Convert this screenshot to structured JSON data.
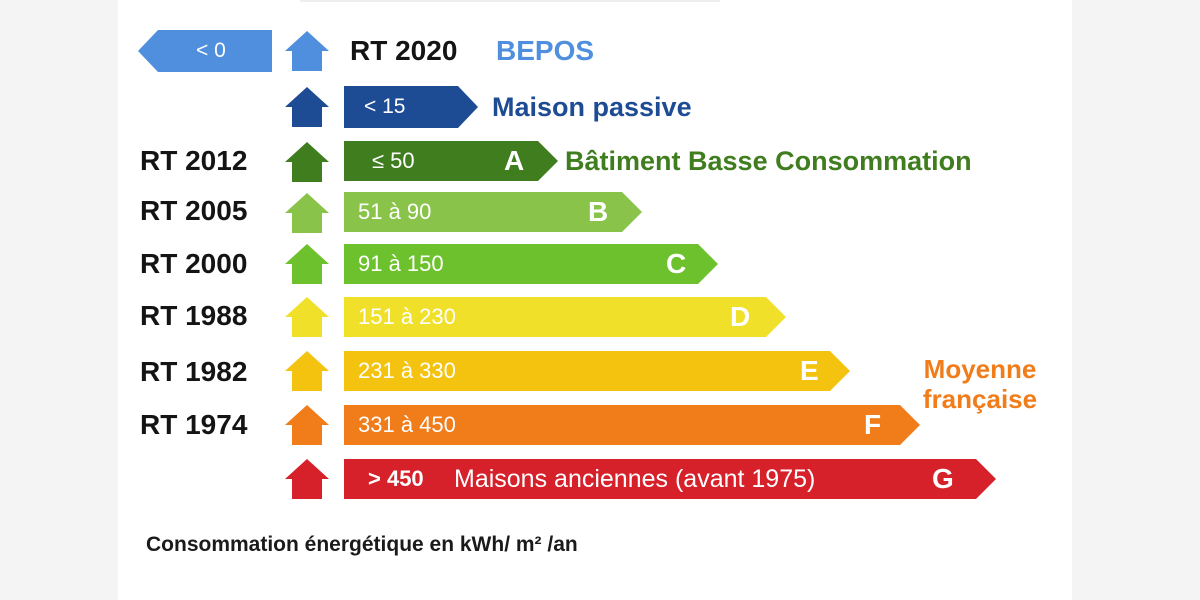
{
  "colors": {
    "bepos": "#4f8fde",
    "passive": "#1e4c94",
    "A": "#3f7d1f",
    "B": "#8ac34a",
    "C": "#6cc12c",
    "D": "#f1e02a",
    "E": "#f4c30f",
    "F": "#f07c1a",
    "G": "#d6202a"
  },
  "bepos": {
    "value": "< 0",
    "regulation": "RT 2020",
    "label": "BEPOS"
  },
  "passive": {
    "value": "< 15",
    "label": "Maison passive"
  },
  "classes": [
    {
      "regulation": "RT 2012",
      "range": "≤ 50",
      "letter": "A",
      "note": "Bâtiment Basse Consommation"
    },
    {
      "regulation": "RT 2005",
      "range": "51 à 90",
      "letter": "B"
    },
    {
      "regulation": "RT 2000",
      "range": "91 à 150",
      "letter": "C"
    },
    {
      "regulation": "RT 1988",
      "range": "151 à 230",
      "letter": "D"
    },
    {
      "regulation": "RT 1982",
      "range": "231 à 330",
      "letter": "E"
    },
    {
      "regulation": "RT 1974",
      "range": "331 à 450",
      "letter": "F"
    },
    {
      "regulation": "",
      "range": "> 450",
      "letter": "G",
      "description": "Maisons anciennes (avant 1975)"
    }
  ],
  "average": {
    "line1": "Moyenne",
    "line2": "française"
  },
  "footer": "Consommation énergétique en kWh/ m² /an"
}
